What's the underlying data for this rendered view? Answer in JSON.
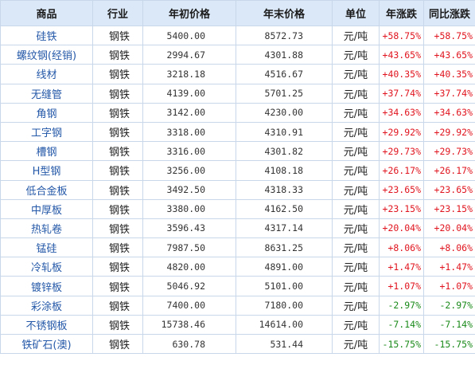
{
  "table": {
    "headers": {
      "name": "商品",
      "industry": "行业",
      "start_price": "年初价格",
      "end_price": "年末价格",
      "unit": "单位",
      "annual_change": "年涨跌",
      "yoy_change": "同比涨跌"
    },
    "colors": {
      "up": "#e0141e",
      "down": "#1a8a1a",
      "link": "#2458a8",
      "header_bg": "#dbe8f7"
    },
    "rows": [
      {
        "name": "硅铁",
        "industry": "钢铁",
        "start": "5400.00",
        "end": "8572.73",
        "unit": "元/吨",
        "annual": "+58.75%",
        "yoy": "+58.75%",
        "trend": "up"
      },
      {
        "name": "螺纹钢(经销)",
        "industry": "钢铁",
        "start": "2994.67",
        "end": "4301.88",
        "unit": "元/吨",
        "annual": "+43.65%",
        "yoy": "+43.65%",
        "trend": "up"
      },
      {
        "name": "线材",
        "industry": "钢铁",
        "start": "3218.18",
        "end": "4516.67",
        "unit": "元/吨",
        "annual": "+40.35%",
        "yoy": "+40.35%",
        "trend": "up"
      },
      {
        "name": "无缝管",
        "industry": "钢铁",
        "start": "4139.00",
        "end": "5701.25",
        "unit": "元/吨",
        "annual": "+37.74%",
        "yoy": "+37.74%",
        "trend": "up"
      },
      {
        "name": "角钢",
        "industry": "钢铁",
        "start": "3142.00",
        "end": "4230.00",
        "unit": "元/吨",
        "annual": "+34.63%",
        "yoy": "+34.63%",
        "trend": "up"
      },
      {
        "name": "工字钢",
        "industry": "钢铁",
        "start": "3318.00",
        "end": "4310.91",
        "unit": "元/吨",
        "annual": "+29.92%",
        "yoy": "+29.92%",
        "trend": "up"
      },
      {
        "name": "槽钢",
        "industry": "钢铁",
        "start": "3316.00",
        "end": "4301.82",
        "unit": "元/吨",
        "annual": "+29.73%",
        "yoy": "+29.73%",
        "trend": "up"
      },
      {
        "name": "H型钢",
        "industry": "钢铁",
        "start": "3256.00",
        "end": "4108.18",
        "unit": "元/吨",
        "annual": "+26.17%",
        "yoy": "+26.17%",
        "trend": "up"
      },
      {
        "name": "低合金板",
        "industry": "钢铁",
        "start": "3492.50",
        "end": "4318.33",
        "unit": "元/吨",
        "annual": "+23.65%",
        "yoy": "+23.65%",
        "trend": "up"
      },
      {
        "name": "中厚板",
        "industry": "钢铁",
        "start": "3380.00",
        "end": "4162.50",
        "unit": "元/吨",
        "annual": "+23.15%",
        "yoy": "+23.15%",
        "trend": "up"
      },
      {
        "name": "热轧卷",
        "industry": "钢铁",
        "start": "3596.43",
        "end": "4317.14",
        "unit": "元/吨",
        "annual": "+20.04%",
        "yoy": "+20.04%",
        "trend": "up"
      },
      {
        "name": "锰硅",
        "industry": "钢铁",
        "start": "7987.50",
        "end": "8631.25",
        "unit": "元/吨",
        "annual": "+8.06%",
        "yoy": "+8.06%",
        "trend": "up"
      },
      {
        "name": "冷轧板",
        "industry": "钢铁",
        "start": "4820.00",
        "end": "4891.00",
        "unit": "元/吨",
        "annual": "+1.47%",
        "yoy": "+1.47%",
        "trend": "up"
      },
      {
        "name": "镀锌板",
        "industry": "钢铁",
        "start": "5046.92",
        "end": "5101.00",
        "unit": "元/吨",
        "annual": "+1.07%",
        "yoy": "+1.07%",
        "trend": "up"
      },
      {
        "name": "彩涂板",
        "industry": "钢铁",
        "start": "7400.00",
        "end": "7180.00",
        "unit": "元/吨",
        "annual": "-2.97%",
        "yoy": "-2.97%",
        "trend": "down"
      },
      {
        "name": "不锈钢板",
        "industry": "钢铁",
        "start": "15738.46",
        "end": "14614.00",
        "unit": "元/吨",
        "annual": "-7.14%",
        "yoy": "-7.14%",
        "trend": "down"
      },
      {
        "name": "铁矿石(澳)",
        "industry": "钢铁",
        "start": "630.78",
        "end": "531.44",
        "unit": "元/吨",
        "annual": "-15.75%",
        "yoy": "-15.75%",
        "trend": "down"
      }
    ]
  }
}
